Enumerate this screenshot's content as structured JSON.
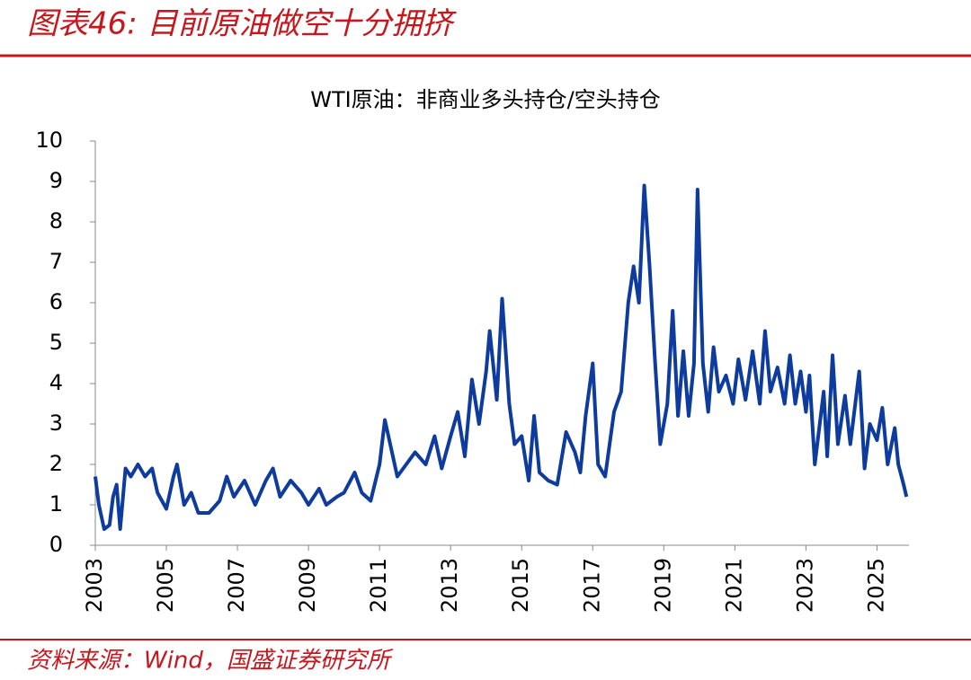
{
  "header": {
    "title": "图表46:  目前原油做空十分拥挤"
  },
  "chart_data": {
    "type": "line",
    "title": "WTI原油：非商业多头持仓/空头持仓",
    "x": [
      2003.0,
      2003.1,
      2003.25,
      2003.4,
      2003.5,
      2003.6,
      2003.7,
      2003.85,
      2004.0,
      2004.2,
      2004.4,
      2004.6,
      2004.75,
      2005.0,
      2005.2,
      2005.3,
      2005.5,
      2005.7,
      2005.9,
      2006.2,
      2006.5,
      2006.7,
      2006.9,
      2007.2,
      2007.5,
      2007.8,
      2008.0,
      2008.2,
      2008.5,
      2008.8,
      2009.0,
      2009.3,
      2009.5,
      2009.8,
      2010.0,
      2010.3,
      2010.5,
      2010.75,
      2011.0,
      2011.15,
      2011.3,
      2011.5,
      2011.75,
      2012.0,
      2012.3,
      2012.55,
      2012.75,
      2013.0,
      2013.2,
      2013.4,
      2013.6,
      2013.8,
      2014.0,
      2014.1,
      2014.3,
      2014.45,
      2014.65,
      2014.8,
      2015.0,
      2015.2,
      2015.35,
      2015.5,
      2015.75,
      2016.0,
      2016.25,
      2016.5,
      2016.65,
      2016.8,
      2017.0,
      2017.15,
      2017.35,
      2017.6,
      2017.8,
      2018.0,
      2018.15,
      2018.3,
      2018.45,
      2018.6,
      2018.75,
      2018.9,
      2019.1,
      2019.25,
      2019.4,
      2019.55,
      2019.7,
      2019.85,
      2019.95,
      2020.1,
      2020.25,
      2020.4,
      2020.55,
      2020.75,
      2020.95,
      2021.1,
      2021.3,
      2021.5,
      2021.7,
      2021.85,
      2022.0,
      2022.2,
      2022.4,
      2022.55,
      2022.7,
      2022.85,
      2023.0,
      2023.1,
      2023.25,
      2023.5,
      2023.6,
      2023.75,
      2023.9,
      2024.1,
      2024.25,
      2024.5,
      2024.65,
      2024.8,
      2025.0,
      2025.15,
      2025.3,
      2025.5,
      2025.6,
      2025.75,
      2025.83
    ],
    "series": [
      {
        "color": "#0d3b9e",
        "values": [
          1.7,
          1.0,
          0.4,
          0.5,
          1.2,
          1.5,
          0.4,
          1.9,
          1.7,
          2.0,
          1.7,
          1.9,
          1.3,
          0.9,
          1.7,
          2.0,
          1.0,
          1.3,
          0.8,
          0.8,
          1.1,
          1.7,
          1.2,
          1.6,
          1.0,
          1.6,
          1.9,
          1.2,
          1.6,
          1.3,
          1.0,
          1.4,
          1.0,
          1.2,
          1.3,
          1.8,
          1.3,
          1.1,
          2.0,
          3.1,
          2.5,
          1.7,
          2.0,
          2.3,
          2.0,
          2.7,
          1.9,
          2.7,
          3.3,
          2.2,
          4.1,
          3.0,
          4.3,
          5.3,
          3.6,
          6.1,
          3.5,
          2.5,
          2.7,
          1.6,
          3.2,
          1.8,
          1.6,
          1.5,
          2.8,
          2.3,
          1.8,
          3.2,
          4.5,
          2.0,
          1.7,
          3.3,
          3.8,
          6.0,
          6.9,
          6.0,
          8.9,
          6.9,
          4.6,
          2.5,
          3.5,
          5.8,
          3.2,
          4.8,
          3.2,
          4.5,
          8.8,
          4.5,
          3.3,
          4.9,
          3.8,
          4.2,
          3.5,
          4.6,
          3.6,
          4.8,
          3.5,
          5.3,
          3.8,
          4.4,
          3.5,
          4.7,
          3.5,
          4.3,
          3.3,
          4.2,
          2.0,
          3.8,
          2.2,
          4.7,
          2.5,
          3.7,
          2.5,
          4.3,
          1.9,
          3.0,
          2.6,
          3.4,
          2.0,
          2.9,
          2.0,
          1.5,
          1.2
        ]
      }
    ],
    "xlim": [
      2003,
      2025.9
    ],
    "xticks": [
      2003,
      2005,
      2007,
      2009,
      2011,
      2013,
      2015,
      2017,
      2019,
      2021,
      2023,
      2025
    ],
    "ylim": [
      0,
      10
    ],
    "yticks": [
      0,
      1,
      2,
      3,
      4,
      5,
      6,
      7,
      8,
      9,
      10
    ]
  },
  "footer": {
    "source": "资料来源：Wind，国盛证券研究所"
  }
}
